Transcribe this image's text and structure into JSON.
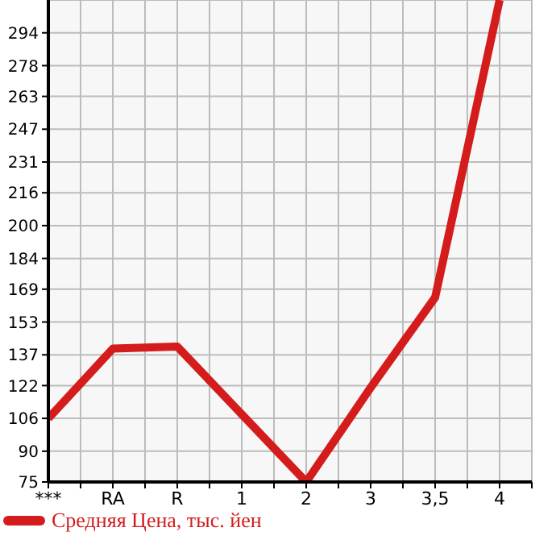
{
  "chart_data": {
    "type": "line",
    "categories": [
      "***",
      "RA",
      "R",
      "1",
      "2",
      "3",
      "3,5",
      "4"
    ],
    "series": [
      {
        "name": "Средняя Цена, тыс. йен",
        "color": "#d41c1c",
        "values": [
          106,
          140,
          141,
          108,
          75,
          121,
          165,
          310
        ]
      }
    ],
    "ylim": [
      75,
      310
    ],
    "yticks": [
      75,
      90,
      106,
      122,
      137,
      153,
      169,
      184,
      200,
      216,
      231,
      247,
      263,
      278,
      294
    ],
    "grid": true,
    "legend": "bottom left",
    "marker": "none",
    "line_style": "solid"
  }
}
